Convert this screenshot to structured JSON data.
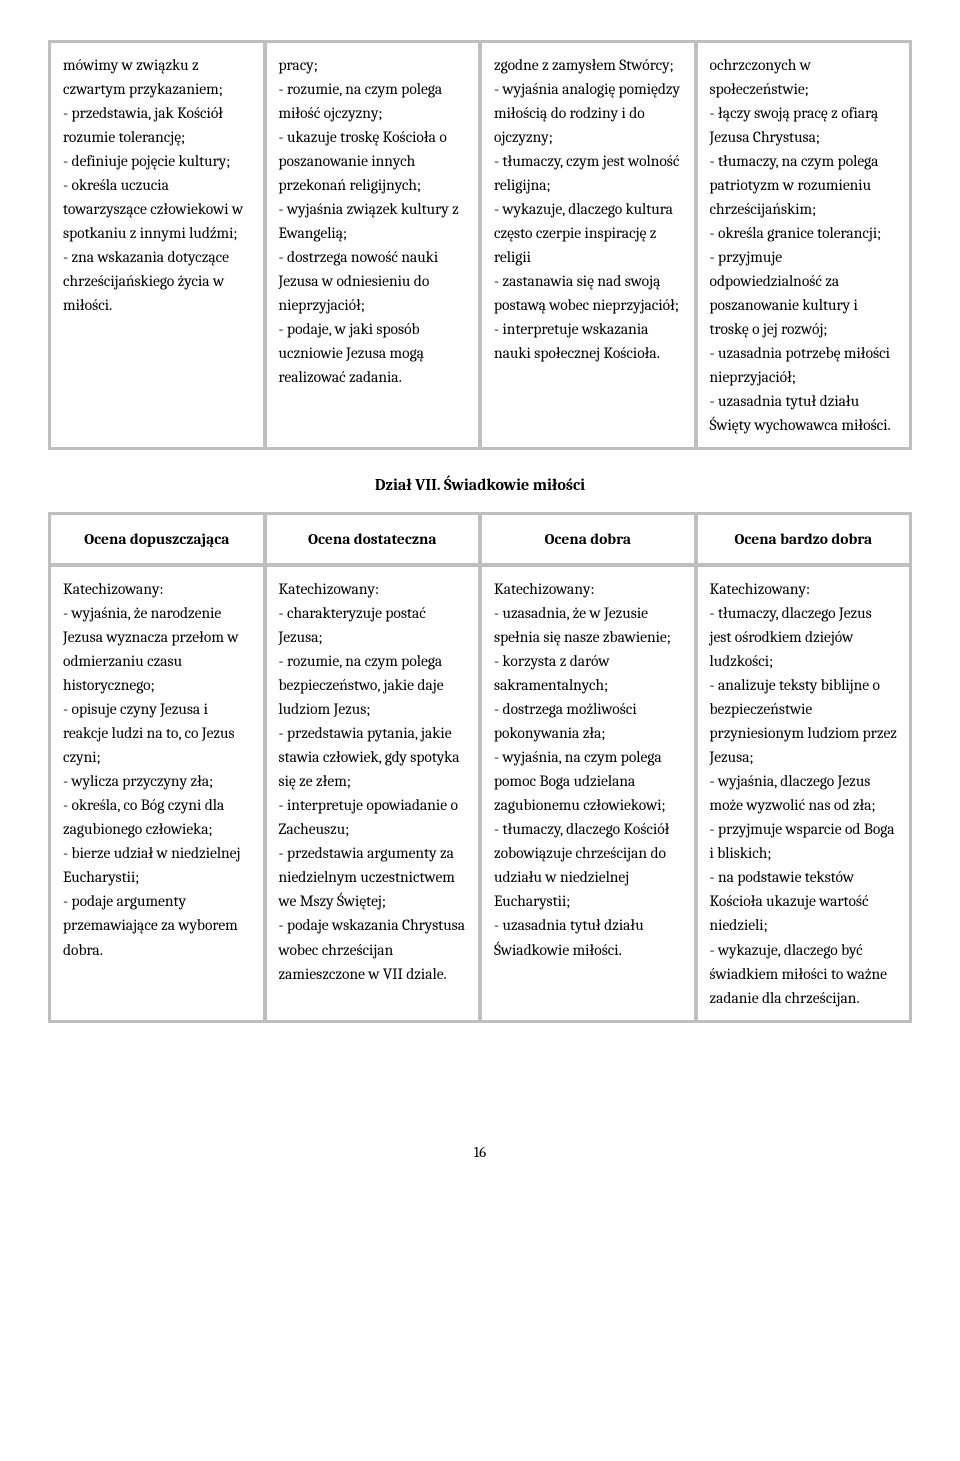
{
  "table1": {
    "cells": [
      "mówimy w związku z czwartym przykazaniem;\n- przedstawia, jak Kościół rozumie tolerancję;\n- definiuje pojęcie kultury;\n- określa uczucia towarzyszące człowiekowi w spotkaniu z innymi ludźmi;\n- zna wskazania dotyczące chrześcijańskiego życia w miłości.",
      "pracy;\n- rozumie, na czym polega miłość ojczyzny;\n- ukazuje troskę Kościoła o poszanowanie innych przekonań religijnych;\n- wyjaśnia związek kultury z Ewangelią;\n- dostrzega nowość nauki Jezusa w odniesieniu do nieprzyjaciół;\n- podaje, w jaki sposób uczniowie Jezusa mogą realizować zadania.",
      "zgodne z zamysłem Stwórcy;\n- wyjaśnia analogię pomiędzy miłością do rodziny i do ojczyzny;\n- tłumaczy, czym jest wolność religijna;\n- wykazuje, dlaczego kultura często czerpie inspirację z religii\n- zastanawia się nad swoją postawą wobec nieprzyjaciół;\n- interpretuje wskazania nauki społecznej Kościoła.",
      "ochrzczonych w społeczeństwie;\n- łączy swoją pracę z ofiarą Jezusa Chrystusa;\n- tłumaczy, na czym polega patriotyzm w rozumieniu chrześcijańskim;\n- określa granice tolerancji;\n- przyjmuje odpowiedzialność za poszanowanie kultury i troskę o jej rozwój;\n- uzasadnia potrzebę miłości nieprzyjaciół;\n- uzasadnia tytuł działu Święty wychowawca miłości."
    ]
  },
  "section_title": "Dział VII. Świadkowie miłości",
  "table2": {
    "headers": [
      "Ocena dopuszczająca",
      "Ocena dostateczna",
      "Ocena dobra",
      "Ocena bardzo dobra"
    ],
    "cells": [
      "Katechizowany:\n- wyjaśnia, że narodzenie Jezusa wyznacza przełom w odmierzaniu czasu historycznego;\n- opisuje czyny Jezusa i reakcje ludzi na to, co Jezus czyni;\n- wylicza przyczyny zła;\n- określa, co Bóg czyni dla zagubionego człowieka;\n- bierze udział w niedzielnej Eucharystii;\n- podaje argumenty przemawiające za wyborem dobra.",
      "Katechizowany:\n- charakteryzuje postać Jezusa;\n- rozumie, na czym polega bezpieczeństwo, jakie daje ludziom Jezus;\n- przedstawia pytania, jakie stawia człowiek, gdy spotyka się ze złem;\n- interpretuje opowiadanie o Zacheuszu;\n- przedstawia argumenty za niedzielnym uczestnictwem we Mszy Świętej;\n- podaje wskazania Chrystusa wobec chrześcijan zamieszczone w VII dziale.",
      "Katechizowany:\n- uzasadnia, że w Jezusie spełnia się nasze zbawienie;\n- korzysta z darów sakramentalnych;\n- dostrzega możliwości pokonywania zła;\n- wyjaśnia, na czym polega pomoc Boga udzielana zagubionemu człowiekowi;\n- tłumaczy, dlaczego Kościół zobowiązuje chrześcijan do udziału w niedzielnej Eucharystii;\n- uzasadnia tytuł działu Świadkowie miłości.",
      "Katechizowany:\n- tłumaczy, dlaczego Jezus jest ośrodkiem dziejów ludzkości;\n- analizuje teksty biblijne o bezpieczeństwie przyniesionym ludziom przez Jezusa;\n- wyjaśnia, dlaczego Jezus może wyzwolić nas od zła;\n- przyjmuje wsparcie od Boga i bliskich;\n- na podstawie tekstów Kościoła ukazuje wartość niedzieli;\n- wykazuje, dlaczego być świadkiem miłości to ważne zadanie dla chrześcijan."
    ]
  },
  "page_number": "16"
}
